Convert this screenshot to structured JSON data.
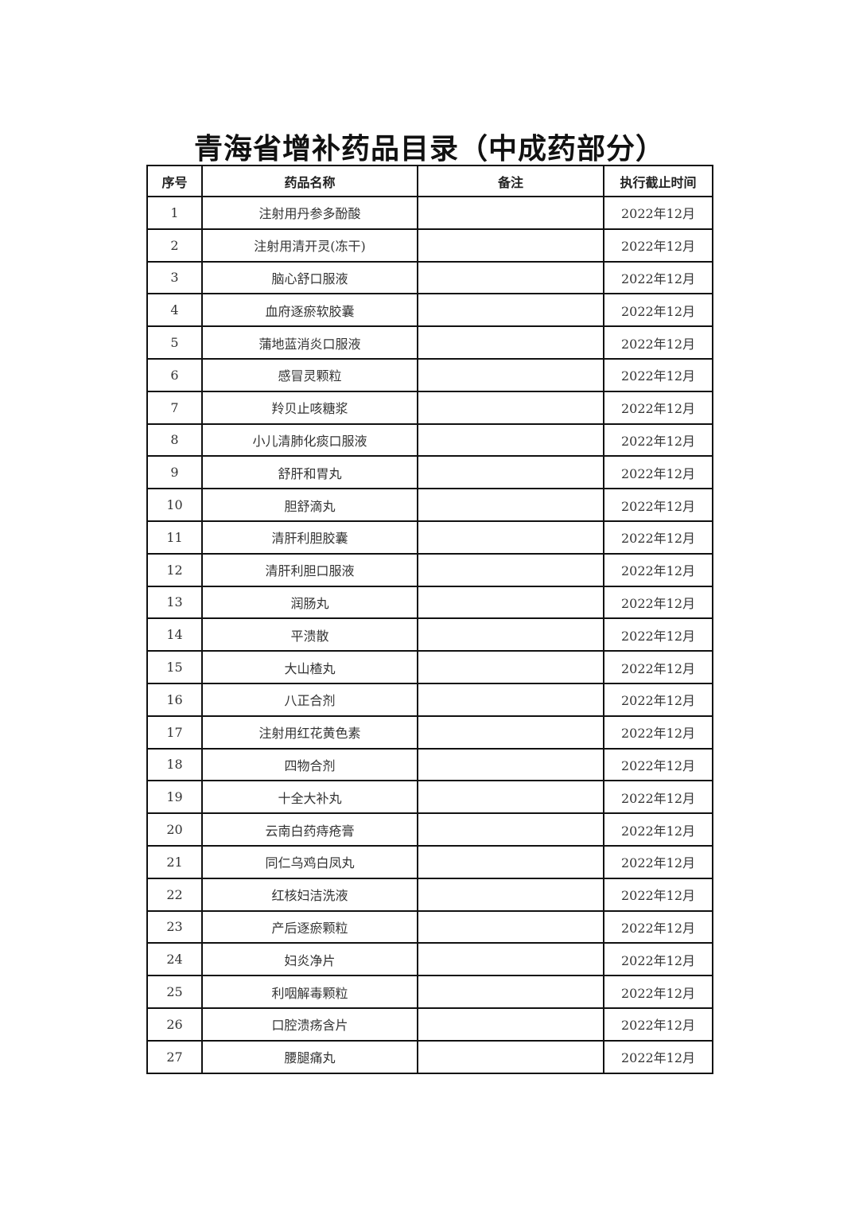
{
  "title": "青海省增补药品目录（中成药部分）",
  "headers": [
    "序号",
    "药品名称",
    "备注",
    "执行截止时间"
  ],
  "rows": [
    {
      "no": "1",
      "name": "注射用丹参多酚酸",
      "note": "",
      "deadline": "2022年12月"
    },
    {
      "no": "2",
      "name": "注射用清开灵(冻干)",
      "note": "",
      "deadline": "2022年12月"
    },
    {
      "no": "3",
      "name": "脑心舒口服液",
      "note": "",
      "deadline": "2022年12月"
    },
    {
      "no": "4",
      "name": "血府逐瘀软胶囊",
      "note": "",
      "deadline": "2022年12月"
    },
    {
      "no": "5",
      "name": "蒲地蓝消炎口服液",
      "note": "",
      "deadline": "2022年12月"
    },
    {
      "no": "6",
      "name": "感冒灵颗粒",
      "note": "",
      "deadline": "2022年12月"
    },
    {
      "no": "7",
      "name": "羚贝止咳糖浆",
      "note": "",
      "deadline": "2022年12月"
    },
    {
      "no": "8",
      "name": "小儿清肺化痰口服液",
      "note": "",
      "deadline": "2022年12月"
    },
    {
      "no": "9",
      "name": "舒肝和胃丸",
      "note": "",
      "deadline": "2022年12月"
    },
    {
      "no": "10",
      "name": "胆舒滴丸",
      "note": "",
      "deadline": "2022年12月"
    },
    {
      "no": "11",
      "name": "清肝利胆胶囊",
      "note": "",
      "deadline": "2022年12月"
    },
    {
      "no": "12",
      "name": "清肝利胆口服液",
      "note": "",
      "deadline": "2022年12月"
    },
    {
      "no": "13",
      "name": "润肠丸",
      "note": "",
      "deadline": "2022年12月"
    },
    {
      "no": "14",
      "name": "平溃散",
      "note": "",
      "deadline": "2022年12月"
    },
    {
      "no": "15",
      "name": "大山楂丸",
      "note": "",
      "deadline": "2022年12月"
    },
    {
      "no": "16",
      "name": "八正合剂",
      "note": "",
      "deadline": "2022年12月"
    },
    {
      "no": "17",
      "name": "注射用红花黄色素",
      "note": "",
      "deadline": "2022年12月"
    },
    {
      "no": "18",
      "name": "四物合剂",
      "note": "",
      "deadline": "2022年12月"
    },
    {
      "no": "19",
      "name": "十全大补丸",
      "note": "",
      "deadline": "2022年12月"
    },
    {
      "no": "20",
      "name": "云南白药痔疮膏",
      "note": "",
      "deadline": "2022年12月"
    },
    {
      "no": "21",
      "name": "同仁乌鸡白凤丸",
      "note": "",
      "deadline": "2022年12月"
    },
    {
      "no": "22",
      "name": "红核妇洁洗液",
      "note": "",
      "deadline": "2022年12月"
    },
    {
      "no": "23",
      "name": "产后逐瘀颗粒",
      "note": "",
      "deadline": "2022年12月"
    },
    {
      "no": "24",
      "name": "妇炎净片",
      "note": "",
      "deadline": "2022年12月"
    },
    {
      "no": "25",
      "name": "利咽解毒颗粒",
      "note": "",
      "deadline": "2022年12月"
    },
    {
      "no": "26",
      "name": "口腔溃疡含片",
      "note": "",
      "deadline": "2022年12月"
    },
    {
      "no": "27",
      "name": "腰腿痛丸",
      "note": "",
      "deadline": "2022年12月"
    }
  ]
}
